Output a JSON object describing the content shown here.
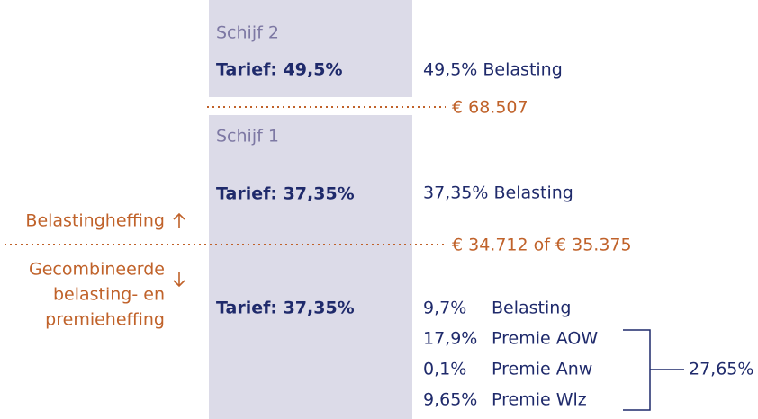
{
  "schijf2": {
    "label": "Schijf 2",
    "tarief": "Tarief: 49,5%",
    "heffing": "49,5% Belasting"
  },
  "grens1": "€ 68.507",
  "schijf1": {
    "label": "Schijf 1",
    "tarief_boven": "Tarief: 37,35%",
    "heffing_boven": "37,35% Belasting",
    "tarief_onder": "Tarief: 37,35%",
    "componenten": [
      {
        "percentage": "9,7%",
        "naam": "Belasting"
      },
      {
        "percentage": "17,9%",
        "naam": "Premie AOW"
      },
      {
        "percentage": "0,1%",
        "naam": "Premie Anw"
      },
      {
        "percentage": "9,65%",
        "naam": "Premie Wlz"
      }
    ]
  },
  "grens2": "€ 34.712 of € 35.375",
  "zones": {
    "boven": "Belastingheffing",
    "onder": [
      "Gecombineerde",
      "belasting- en",
      "premieheffing"
    ]
  },
  "premie_totaal": "27,65%"
}
